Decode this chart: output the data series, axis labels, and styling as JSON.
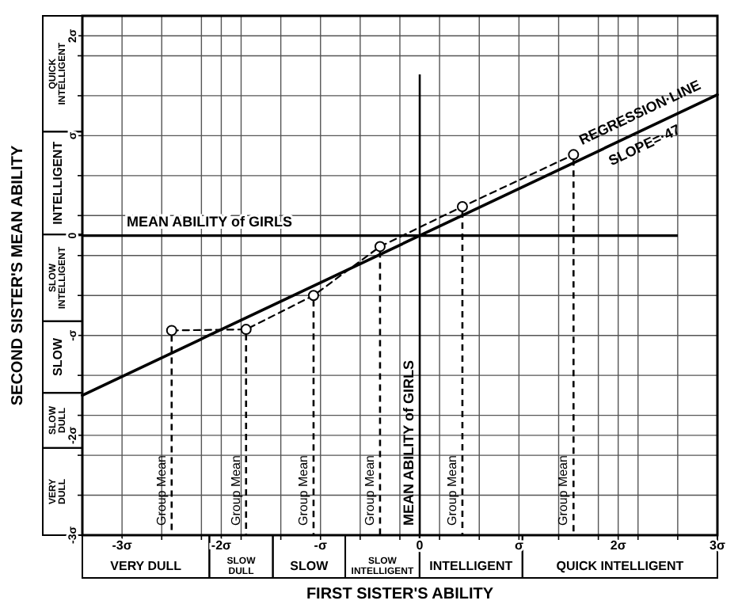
{
  "chart_data": {
    "type": "line",
    "xlabel": "FIRST SISTER'S ABILITY",
    "ylabel": "SECOND SISTER'S MEAN ABILITY",
    "xlim": [
      -3.4,
      3.0
    ],
    "ylim": [
      -3.0,
      2.2
    ],
    "xticks": [
      {
        "value": -3,
        "label": "-3σ"
      },
      {
        "value": -2.6,
        "label": null
      },
      {
        "value": -2.2,
        "label": null
      },
      {
        "value": -2,
        "label": "-2σ"
      },
      {
        "value": -1.8,
        "label": null
      },
      {
        "value": -1.4,
        "label": null
      },
      {
        "value": -1,
        "label": "-σ"
      },
      {
        "value": -0.6,
        "label": null
      },
      {
        "value": -0.2,
        "label": null
      },
      0,
      {
        "value": 0.2,
        "label": null
      },
      {
        "value": 0.6,
        "label": null
      },
      {
        "value": 1,
        "label": "σ"
      },
      {
        "value": 1.4,
        "label": null
      },
      {
        "value": 1.8,
        "label": null
      },
      {
        "value": 2,
        "label": "2σ"
      },
      {
        "value": 2.2,
        "label": null
      },
      {
        "value": 2.6,
        "label": null
      },
      {
        "value": 3,
        "label": "3σ"
      }
    ],
    "yticks": [
      {
        "value": -3,
        "label": "-3σ"
      },
      {
        "value": -2.6,
        "label": null
      },
      {
        "value": -2.2,
        "label": null
      },
      {
        "value": -2,
        "label": "-2σ"
      },
      {
        "value": -1.8,
        "label": null
      },
      {
        "value": -1.4,
        "label": null
      },
      {
        "value": -1,
        "label": "-σ"
      },
      {
        "value": -0.6,
        "label": null
      },
      {
        "value": -0.2,
        "label": null
      },
      0,
      {
        "value": 0.2,
        "label": null
      },
      {
        "value": 0.6,
        "label": null
      },
      {
        "value": 1,
        "label": "σ"
      },
      {
        "value": 1.4,
        "label": null
      },
      {
        "value": 1.8,
        "label": null
      },
      {
        "value": 2,
        "label": "2σ"
      }
    ],
    "grid": true,
    "series": [
      {
        "name": "REGRESSION·LINE",
        "color": "#000000",
        "line_style": "solid",
        "marker": "none",
        "x": [
          -3.4,
          3.0
        ],
        "values": [
          -1.6,
          1.41
        ]
      },
      {
        "color": "#000000",
        "line_style": "dashed",
        "marker": "circle",
        "x": [
          -2.5,
          -1.75,
          -1.07,
          -0.4,
          0.43,
          1.55
        ],
        "values": [
          -0.95,
          -0.94,
          -0.6,
          -0.11,
          0.29,
          0.81
        ]
      }
    ],
    "ref_lines": [
      {
        "axis": "y",
        "value": 0,
        "label": "MEAN ABILITY of GIRLS",
        "color": "#000000",
        "line_style": "solid"
      },
      {
        "axis": "x",
        "value": -2.5,
        "label": "Group Mean",
        "color": "#000000",
        "line_style": "dashed"
      },
      {
        "axis": "x",
        "value": -1.75,
        "label": "Group Mean",
        "color": "#000000",
        "line_style": "dashed"
      },
      {
        "axis": "x",
        "value": -1.07,
        "label": "Group Mean",
        "color": "#000000",
        "line_style": "dashed"
      },
      {
        "axis": "x",
        "value": -0.4,
        "label": "Group Mean",
        "color": "#000000",
        "line_style": "dashed"
      },
      {
        "axis": "x",
        "value": 0,
        "label": "MEAN ABILITY of GIRLS",
        "color": "#000000",
        "line_style": "solid"
      },
      {
        "axis": "x",
        "value": 0.43,
        "label": "Group Mean",
        "color": "#000000",
        "line_style": "dashed"
      },
      {
        "axis": "x",
        "value": 1.55,
        "label": "Group Mean",
        "color": "#000000",
        "line_style": "dashed"
      }
    ],
    "annotations": [
      "VERY DULL",
      "SLOW DULL",
      "SLOW",
      "SLOW INTELLIGENT",
      "INTELLIGENT",
      "QUICK INTELLIGENT",
      "VERY DULL",
      "SLOW DULL",
      "SLOW",
      "SLOW INTELLIGENT",
      "INTELLIGENT",
      "QUICK INTELLIGENT",
      "SLOPE=·47"
    ]
  }
}
